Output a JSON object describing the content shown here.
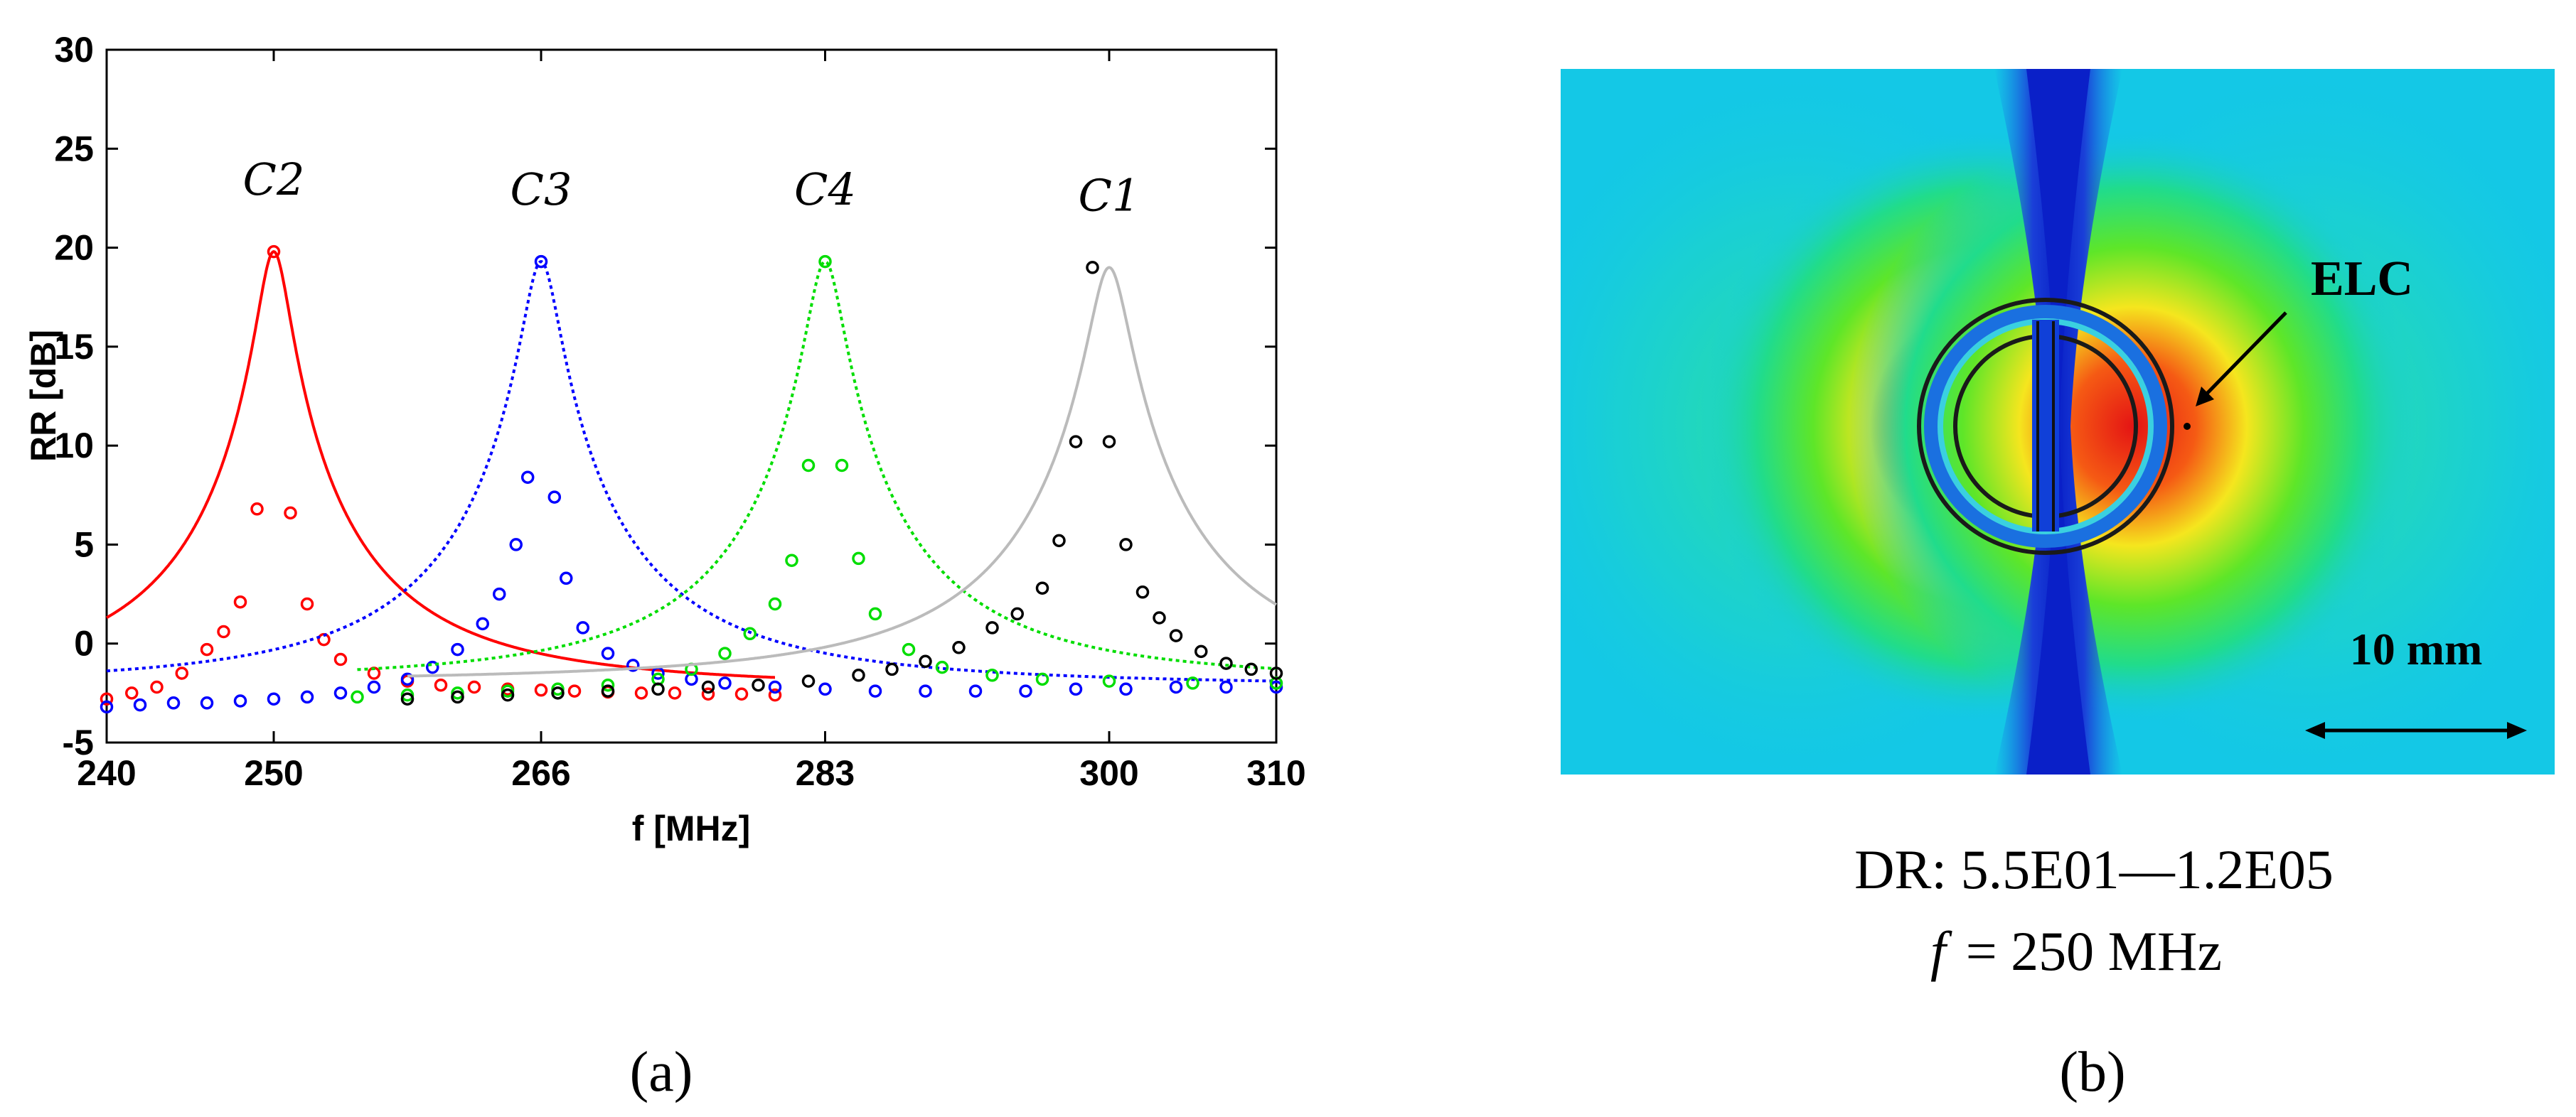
{
  "chart_data": [
    {
      "type": "line",
      "panel_label": "(a)",
      "xlabel": "f [MHz]",
      "ylabel": "RR [dB]",
      "xlim": [
        240,
        310
      ],
      "ylim": [
        -5,
        30
      ],
      "xticks": [
        "240",
        "250",
        "266",
        "283",
        "300",
        "310"
      ],
      "yticks": [
        "-5",
        "0",
        "5",
        "10",
        "15",
        "20",
        "25",
        "30"
      ],
      "series": [
        {
          "name": "C2",
          "color": "#ff0000",
          "line_style": "solid",
          "marker": "open-circle",
          "f0": 250,
          "peak": 19.8,
          "half_width": 0.9,
          "baseline": -2.3,
          "x": [
            240,
            241.5,
            243,
            244.5,
            246,
            247,
            248,
            249,
            250,
            251,
            252,
            253,
            254,
            256,
            258,
            260,
            262,
            264,
            266,
            268,
            270,
            272,
            274,
            276,
            278,
            280
          ],
          "y": [
            -2.8,
            -2.5,
            -2.2,
            -1.5,
            -0.3,
            0.6,
            2.1,
            6.8,
            19.8,
            6.6,
            2.0,
            0.2,
            -0.8,
            -1.5,
            -1.9,
            -2.1,
            -2.2,
            -2.3,
            -2.35,
            -2.4,
            -2.45,
            -2.5,
            -2.5,
            -2.55,
            -2.55,
            -2.6
          ]
        },
        {
          "name": "C3",
          "color": "#0000ff",
          "line_style": "dotted",
          "marker": "open-circle",
          "f0": 266,
          "peak": 19.3,
          "half_width": 1.0,
          "baseline": -2.2,
          "x": [
            240,
            242,
            244,
            246,
            248,
            250,
            252,
            254,
            256,
            258,
            259.5,
            261,
            262.5,
            263.5,
            264.5,
            265.2,
            266,
            266.8,
            267.5,
            268.5,
            270,
            271.5,
            273,
            275,
            277,
            280,
            283,
            286,
            289,
            292,
            295,
            298,
            301,
            304,
            307,
            310
          ],
          "y": [
            -3.2,
            -3.1,
            -3.0,
            -3.0,
            -2.9,
            -2.8,
            -2.7,
            -2.5,
            -2.2,
            -1.8,
            -1.2,
            -0.3,
            1.0,
            2.5,
            5.0,
            8.4,
            19.3,
            7.4,
            3.3,
            0.8,
            -0.5,
            -1.1,
            -1.5,
            -1.8,
            -2.0,
            -2.2,
            -2.3,
            -2.4,
            -2.4,
            -2.4,
            -2.4,
            -2.3,
            -2.3,
            -2.2,
            -2.2,
            -2.2
          ]
        },
        {
          "name": "C4",
          "color": "#00dd00",
          "line_style": "dotted",
          "marker": "open-circle",
          "f0": 283,
          "peak": 19.3,
          "half_width": 1.0,
          "baseline": -2.0,
          "x": [
            255,
            258,
            261,
            264,
            267,
            270,
            273,
            275,
            277,
            278.5,
            280,
            281,
            282,
            283,
            284,
            285,
            286,
            288,
            290,
            293,
            296,
            300,
            305,
            310
          ],
          "y": [
            -2.7,
            -2.6,
            -2.5,
            -2.4,
            -2.3,
            -2.1,
            -1.8,
            -1.3,
            -0.5,
            0.5,
            2.0,
            4.2,
            9.0,
            19.3,
            9.0,
            4.3,
            1.5,
            -0.3,
            -1.2,
            -1.6,
            -1.8,
            -1.9,
            -2.0,
            -2.0
          ]
        },
        {
          "name": "C1",
          "color": "#000000",
          "line_color": "#bbbbbb",
          "line_style": "solid",
          "marker": "open-circle",
          "f0": 300,
          "peak": 19.0,
          "half_width": 1.1,
          "baseline": -2.0,
          "x": [
            258,
            261,
            264,
            267,
            270,
            273,
            276,
            279,
            282,
            285,
            287,
            289,
            291,
            293,
            294.5,
            296,
            297,
            298,
            299,
            300,
            301,
            302,
            303,
            304,
            305.5,
            307,
            308.5,
            310
          ],
          "y": [
            -2.8,
            -2.7,
            -2.6,
            -2.5,
            -2.4,
            -2.3,
            -2.2,
            -2.1,
            -1.9,
            -1.6,
            -1.3,
            -0.9,
            -0.2,
            0.8,
            1.5,
            2.8,
            5.2,
            10.2,
            19.0,
            10.2,
            5.0,
            2.6,
            1.3,
            0.4,
            -0.4,
            -1.0,
            -1.3,
            -1.5
          ]
        }
      ],
      "annotations": [
        "C2",
        "C3",
        "C4",
        "C1"
      ]
    },
    {
      "type": "heatmap",
      "panel_label": "(b)",
      "annotation": "ELC",
      "scale_bar_label": "10 mm",
      "caption_line1": "DR: 5.5E01—1.2E05",
      "caption_line2_var": "f",
      "caption_line2_rest": "= 250 MHz"
    }
  ],
  "colors": {
    "field_background": "#14c8e6",
    "field_low": "#0d3fd6",
    "field_mid": "#28e070",
    "field_high": "#e81818"
  }
}
